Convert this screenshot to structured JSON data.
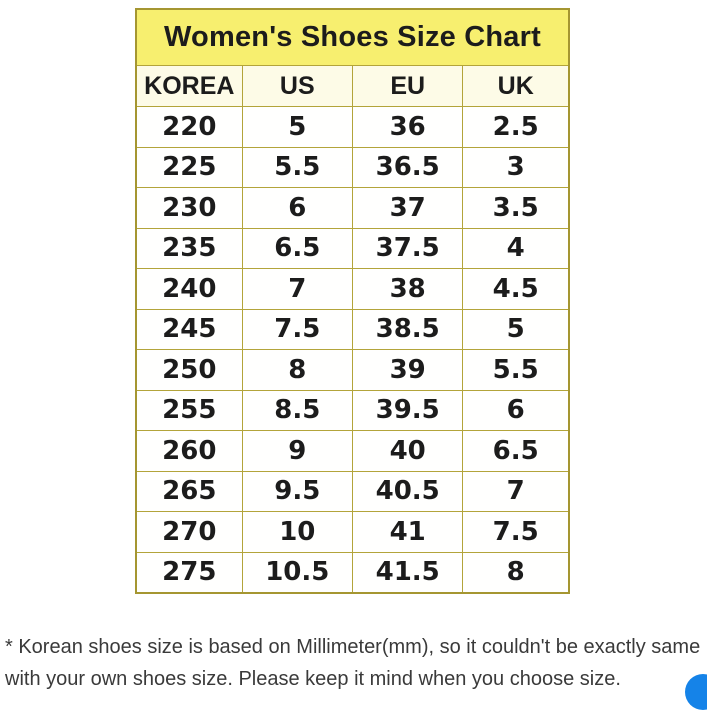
{
  "chart_data": {
    "type": "table",
    "title": "Women's Shoes Size Chart",
    "columns": [
      "KOREA",
      "US",
      "EU",
      "UK"
    ],
    "rows": [
      [
        "220",
        "5",
        "36",
        "2.5"
      ],
      [
        "225",
        "5.5",
        "36.5",
        "3"
      ],
      [
        "230",
        "6",
        "37",
        "3.5"
      ],
      [
        "235",
        "6.5",
        "37.5",
        "4"
      ],
      [
        "240",
        "7",
        "38",
        "4.5"
      ],
      [
        "245",
        "7.5",
        "38.5",
        "5"
      ],
      [
        "250",
        "8",
        "39",
        "5.5"
      ],
      [
        "255",
        "8.5",
        "39.5",
        "6"
      ],
      [
        "260",
        "9",
        "40",
        "6.5"
      ],
      [
        "265",
        "9.5",
        "40.5",
        "7"
      ],
      [
        "270",
        "10",
        "41",
        "7.5"
      ],
      [
        "275",
        "10.5",
        "41.5",
        "8"
      ]
    ],
    "layout": {
      "title_bg": "#f7ef6f",
      "header_bg": "#fdfbe7",
      "cell_bg": "#fffffe",
      "grid_color": "#b3a43a",
      "text_color": "#1c1c1c"
    }
  },
  "footnote": {
    "line1": "* Korean shoes size is based on Millimeter(mm), so it couldn't be exactly same",
    "line2": "with your own shoes size. Please keep it mind when you choose size."
  },
  "floating_button": {
    "color": "#1583e8"
  }
}
